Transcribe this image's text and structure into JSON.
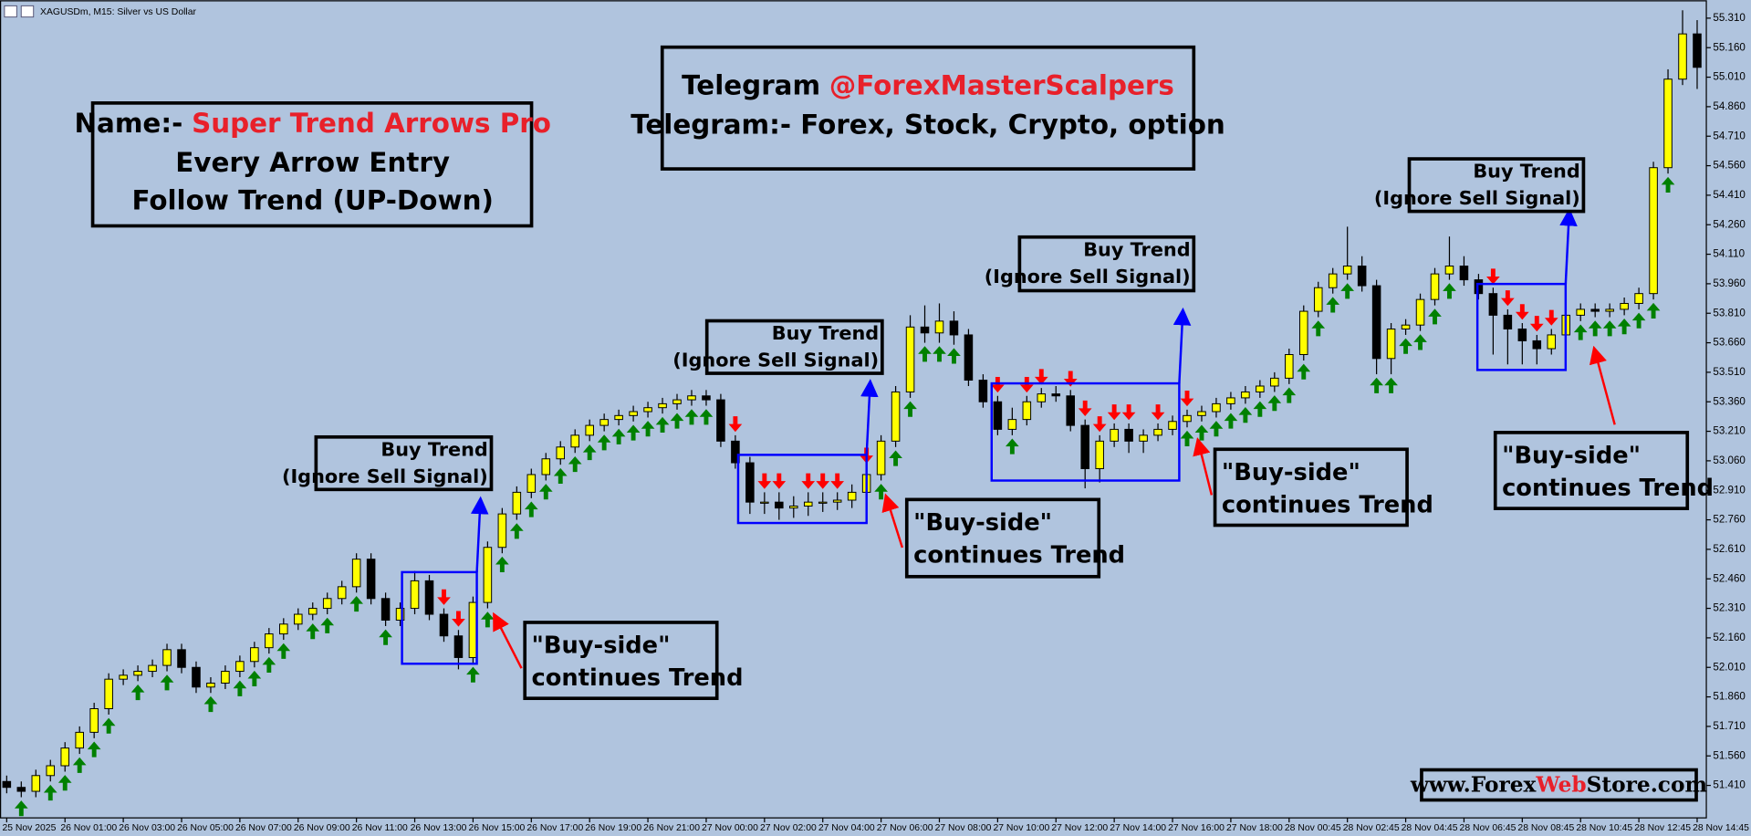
{
  "chart_data": {
    "type": "candlestick",
    "title": "XAGUSDm, M15:  Silver vs US Dollar",
    "open": [
      51.43,
      51.4,
      51.38,
      51.46,
      51.51,
      51.6,
      51.68,
      51.8,
      51.95,
      51.97,
      51.99,
      52.02,
      52.1,
      52.01,
      51.91,
      51.93,
      51.99,
      52.04,
      52.11,
      52.18,
      52.23,
      52.28,
      52.31,
      52.36,
      52.42,
      52.56,
      52.36,
      52.25,
      52.31,
      52.45,
      52.28,
      52.17,
      52.06,
      52.34,
      52.62,
      52.79,
      52.9,
      52.99,
      53.07,
      53.13,
      53.19,
      53.24,
      53.27,
      53.29,
      53.31,
      53.33,
      53.35,
      53.37,
      53.39,
      53.37,
      53.16,
      53.05,
      52.85,
      52.85,
      52.82,
      52.83,
      52.85,
      52.85,
      52.86,
      52.9,
      52.99,
      53.16,
      53.41,
      53.74,
      53.71,
      53.77,
      53.7,
      53.47,
      53.36,
      53.22,
      53.27,
      53.36,
      53.4,
      53.39,
      53.24,
      53.02,
      53.16,
      53.22,
      53.16,
      53.19,
      53.22,
      53.26,
      53.29,
      53.31,
      53.35,
      53.38,
      53.41,
      53.44,
      53.48,
      53.6,
      53.82,
      53.94,
      54.01,
      54.05,
      53.95,
      53.58,
      53.73,
      53.75,
      53.88,
      54.01,
      54.05,
      53.98,
      53.91,
      53.8,
      53.73,
      53.67,
      53.63,
      53.7,
      53.8,
      53.83,
      53.82,
      53.83,
      53.86,
      53.91,
      54.55,
      55.0,
      55.23
    ],
    "high": [
      51.46,
      51.43,
      51.49,
      51.54,
      51.63,
      51.71,
      51.83,
      51.98,
      52.0,
      52.02,
      52.05,
      52.13,
      52.13,
      52.04,
      51.96,
      52.02,
      52.07,
      52.14,
      52.21,
      52.26,
      52.31,
      52.34,
      52.39,
      52.45,
      52.59,
      52.59,
      52.39,
      52.34,
      52.5,
      52.48,
      52.31,
      52.2,
      52.37,
      52.65,
      52.82,
      52.93,
      53.02,
      53.1,
      53.16,
      53.22,
      53.27,
      53.3,
      53.32,
      53.34,
      53.36,
      53.38,
      53.4,
      53.42,
      53.42,
      53.4,
      53.19,
      53.08,
      52.9,
      52.9,
      52.88,
      52.9,
      52.9,
      52.9,
      52.94,
      53.03,
      53.19,
      53.44,
      53.8,
      53.85,
      53.86,
      53.82,
      53.73,
      53.5,
      53.39,
      53.33,
      53.39,
      53.43,
      53.44,
      53.42,
      53.27,
      53.19,
      53.25,
      53.25,
      53.22,
      53.25,
      53.29,
      53.32,
      53.34,
      53.38,
      53.41,
      53.44,
      53.47,
      53.51,
      53.63,
      53.85,
      53.97,
      54.04,
      54.25,
      54.1,
      53.98,
      53.76,
      53.78,
      53.91,
      54.04,
      54.2,
      54.1,
      54.01,
      53.94,
      53.83,
      53.76,
      53.7,
      53.73,
      53.83,
      53.86,
      53.86,
      53.86,
      53.89,
      53.94,
      54.58,
      55.05,
      55.35,
      55.3
    ],
    "low": [
      51.37,
      51.35,
      51.35,
      51.43,
      51.48,
      51.57,
      51.65,
      51.77,
      51.92,
      51.94,
      51.96,
      51.99,
      51.98,
      51.88,
      51.88,
      51.9,
      51.96,
      52.01,
      52.08,
      52.15,
      52.2,
      52.25,
      52.28,
      52.33,
      52.39,
      52.33,
      52.22,
      52.22,
      52.28,
      52.25,
      52.14,
      52.0,
      52.03,
      52.31,
      52.59,
      52.76,
      52.87,
      52.96,
      53.04,
      53.1,
      53.16,
      53.21,
      53.24,
      53.26,
      53.28,
      53.3,
      53.32,
      53.34,
      53.34,
      53.13,
      53.02,
      52.79,
      52.79,
      52.76,
      52.77,
      52.78,
      52.8,
      52.81,
      52.82,
      52.87,
      52.96,
      53.13,
      53.38,
      53.66,
      53.66,
      53.65,
      53.44,
      53.33,
      53.19,
      53.19,
      53.24,
      53.33,
      53.36,
      53.21,
      52.92,
      52.95,
      53.13,
      53.1,
      53.1,
      53.16,
      53.19,
      53.23,
      53.26,
      53.28,
      53.32,
      53.35,
      53.38,
      53.41,
      53.45,
      53.57,
      53.79,
      53.91,
      53.98,
      53.92,
      53.5,
      53.5,
      53.7,
      53.72,
      53.85,
      53.98,
      53.95,
      53.88,
      53.6,
      53.55,
      53.55,
      53.55,
      53.6,
      53.67,
      53.77,
      53.79,
      53.79,
      53.8,
      53.83,
      53.88,
      54.52,
      54.97,
      54.95
    ],
    "close": [
      51.4,
      51.38,
      51.46,
      51.51,
      51.6,
      51.68,
      51.8,
      51.95,
      51.97,
      51.99,
      52.02,
      52.1,
      52.01,
      51.91,
      51.93,
      51.99,
      52.04,
      52.11,
      52.18,
      52.23,
      52.28,
      52.31,
      52.36,
      52.42,
      52.56,
      52.36,
      52.25,
      52.31,
      52.45,
      52.28,
      52.17,
      52.06,
      52.34,
      52.62,
      52.79,
      52.9,
      52.99,
      53.07,
      53.13,
      53.19,
      53.24,
      53.27,
      53.29,
      53.31,
      53.33,
      53.35,
      53.37,
      53.39,
      53.37,
      53.16,
      53.05,
      52.85,
      52.85,
      52.82,
      52.83,
      52.85,
      52.85,
      52.86,
      52.9,
      52.99,
      53.16,
      53.41,
      53.74,
      53.71,
      53.77,
      53.7,
      53.47,
      53.36,
      53.22,
      53.27,
      53.36,
      53.4,
      53.39,
      53.24,
      53.02,
      53.16,
      53.22,
      53.16,
      53.19,
      53.22,
      53.26,
      53.29,
      53.31,
      53.35,
      53.38,
      53.41,
      53.44,
      53.48,
      53.6,
      53.82,
      53.94,
      54.01,
      54.05,
      53.95,
      53.58,
      53.73,
      53.75,
      53.88,
      54.01,
      54.05,
      53.98,
      53.91,
      53.8,
      53.73,
      53.67,
      53.63,
      53.7,
      53.8,
      53.83,
      53.82,
      53.83,
      53.86,
      53.91,
      54.55,
      55.0,
      55.23,
      55.06
    ],
    "bull_color": "#ffff00",
    "bear_color": "#000000",
    "buy_arrows": {
      "color": "#008000",
      "x": [
        1,
        3,
        4,
        5,
        6,
        7,
        9,
        11,
        14,
        16,
        17,
        18,
        19,
        21,
        22,
        24,
        26,
        32,
        33,
        34,
        35,
        36,
        37,
        38,
        39,
        40,
        41,
        42,
        43,
        44,
        45,
        46,
        47,
        48,
        60,
        61,
        62,
        63,
        64,
        65,
        69,
        81,
        82,
        83,
        84,
        85,
        86,
        87,
        88,
        89,
        90,
        91,
        92,
        94,
        95,
        96,
        97,
        98,
        99,
        108,
        109,
        110,
        111,
        112,
        113,
        114
      ]
    },
    "sell_arrows": {
      "color": "#ff0000",
      "x": [
        30,
        31,
        50,
        52,
        53,
        55,
        56,
        57,
        59,
        68,
        70,
        71,
        73,
        74,
        75,
        76,
        77,
        79,
        81,
        102,
        103,
        104,
        105,
        106
      ]
    },
    "xlim": [
      -0.46,
      116.63
    ],
    "xticks": [
      {
        "value": 0,
        "label": "25 Nov 2025"
      },
      {
        "value": 4,
        "label": "26 Nov 01:00"
      },
      {
        "value": 8,
        "label": "26 Nov 03:00"
      },
      {
        "value": 12,
        "label": "26 Nov 05:00"
      },
      {
        "value": 16,
        "label": "26 Nov 07:00"
      },
      {
        "value": 20,
        "label": "26 Nov 09:00"
      },
      {
        "value": 24,
        "label": "26 Nov 11:00"
      },
      {
        "value": 28,
        "label": "26 Nov 13:00"
      },
      {
        "value": 32,
        "label": "26 Nov 15:00"
      },
      {
        "value": 36,
        "label": "26 Nov 17:00"
      },
      {
        "value": 40,
        "label": "26 Nov 19:00"
      },
      {
        "value": 44,
        "label": "26 Nov 21:00"
      },
      {
        "value": 48,
        "label": "27 Nov 00:00"
      },
      {
        "value": 52,
        "label": "27 Nov 02:00"
      },
      {
        "value": 56,
        "label": "27 Nov 04:00"
      },
      {
        "value": 60,
        "label": "27 Nov 06:00"
      },
      {
        "value": 64,
        "label": "27 Nov 08:00"
      },
      {
        "value": 68,
        "label": "27 Nov 10:00"
      },
      {
        "value": 72,
        "label": "27 Nov 12:00"
      },
      {
        "value": 76,
        "label": "27 Nov 14:00"
      },
      {
        "value": 80,
        "label": "27 Nov 16:00"
      },
      {
        "value": 84,
        "label": "27 Nov 18:00"
      },
      {
        "value": 88,
        "label": "28 Nov 00:45"
      },
      {
        "value": 92,
        "label": "28 Nov 02:45"
      },
      {
        "value": 96,
        "label": "28 Nov 04:45"
      },
      {
        "value": 100,
        "label": "28 Nov 06:45"
      },
      {
        "value": 104,
        "label": "28 Nov 08:45"
      },
      {
        "value": 108,
        "label": "28 Nov 10:45"
      },
      {
        "value": 112,
        "label": "28 Nov 12:45"
      },
      {
        "value": 116,
        "label": "28 Nov 14:45"
      }
    ],
    "ylim": [
      51.245,
      55.401
    ],
    "yticks": [
      {
        "value": 55.31,
        "label": "55.310"
      },
      {
        "value": 55.16,
        "label": "55.160"
      },
      {
        "value": 55.01,
        "label": "55.010"
      },
      {
        "value": 54.86,
        "label": "54.860"
      },
      {
        "value": 54.71,
        "label": "54.710"
      },
      {
        "value": 54.56,
        "label": "54.560"
      },
      {
        "value": 54.41,
        "label": "54.410"
      },
      {
        "value": 54.26,
        "label": "54.260"
      },
      {
        "value": 54.11,
        "label": "54.110"
      },
      {
        "value": 53.96,
        "label": "53.960"
      },
      {
        "value": 53.81,
        "label": "53.810"
      },
      {
        "value": 53.66,
        "label": "53.660"
      },
      {
        "value": 53.51,
        "label": "53.510"
      },
      {
        "value": 53.36,
        "label": "53.360"
      },
      {
        "value": 53.21,
        "label": "53.210"
      },
      {
        "value": 53.06,
        "label": "53.060"
      },
      {
        "value": 52.91,
        "label": "52.910"
      },
      {
        "value": 52.76,
        "label": "52.760"
      },
      {
        "value": 52.61,
        "label": "52.610"
      },
      {
        "value": 52.46,
        "label": "52.460"
      },
      {
        "value": 52.31,
        "label": "52.310"
      },
      {
        "value": 52.16,
        "label": "52.160"
      },
      {
        "value": 52.01,
        "label": "52.010"
      },
      {
        "value": 51.86,
        "label": "51.860"
      },
      {
        "value": 51.71,
        "label": "51.710"
      },
      {
        "value": 51.56,
        "label": "51.560"
      },
      {
        "value": 51.41,
        "label": "51.410"
      }
    ],
    "grid": false
  },
  "annotations": {
    "name_box": {
      "prefix": "Name:-",
      "name": "Super Trend Arrows Pro",
      "lines": [
        "Every Arrow Entry",
        "Follow Trend (UP-Down)"
      ]
    },
    "telegram_box": {
      "prefix": "Telegram",
      "handle": "@ForexMasterScalpers",
      "line2": "Telegram:- Forex, Stock, Crypto, option"
    },
    "buy_trend_labels": [
      {
        "title": "Buy Trend",
        "note": "(Ignore Sell Signal)"
      },
      {
        "title": "Buy Trend",
        "note": "(Ignore Sell Signal)"
      },
      {
        "title": "Buy Trend",
        "note": "(Ignore Sell Signal)"
      },
      {
        "title": "Buy Trend",
        "note": "(Ignore Sell Signal)"
      }
    ],
    "buy_side_labels": [
      {
        "quote": "\"Buy-side\"",
        "text": "continues Trend"
      },
      {
        "quote": "\"Buy-side\"",
        "text": "continues Trend"
      },
      {
        "quote": "\"Buy-side\"",
        "text": "continues Trend"
      },
      {
        "quote": "\"Buy-side\"",
        "text": "continues Trend"
      }
    ],
    "website": {
      "pre": "www.Forex",
      "mid": "Web",
      "post": "Store.com"
    }
  }
}
